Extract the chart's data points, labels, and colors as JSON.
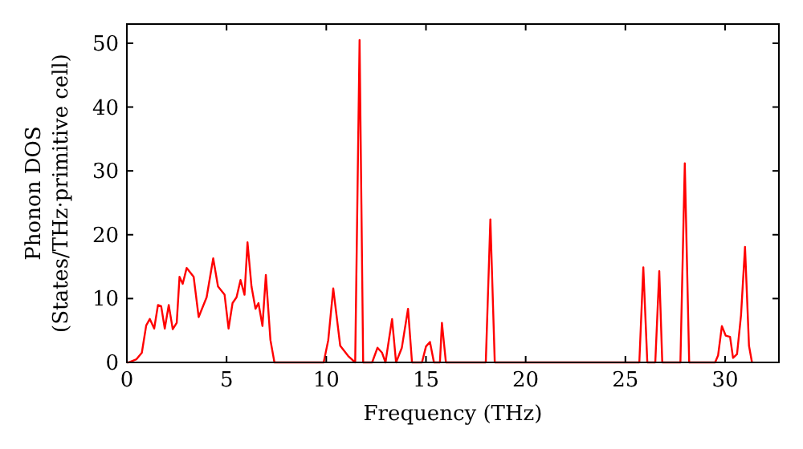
{
  "chart_data": {
    "type": "line",
    "xlabel": "Frequency (THz)",
    "ylabel": "Phonon DOS\n(States/THz·primitive cell)",
    "xlim": [
      0,
      32.7
    ],
    "ylim": [
      0,
      53
    ],
    "xticks": [
      0,
      5,
      10,
      15,
      20,
      25,
      30
    ],
    "yticks": [
      0,
      10,
      20,
      30,
      40,
      50
    ],
    "grid": false,
    "marker": "none",
    "line_style": "solid",
    "series": [
      {
        "color": "#ff0000",
        "x": [
          0,
          0.08,
          0.48,
          0.75,
          0.97,
          1.15,
          1.37,
          1.56,
          1.72,
          1.9,
          2.1,
          2.3,
          2.5,
          2.64,
          2.8,
          3.0,
          3.35,
          3.6,
          4.0,
          4.33,
          4.57,
          4.9,
          5.1,
          5.3,
          5.5,
          5.7,
          5.9,
          6.05,
          6.25,
          6.45,
          6.6,
          6.8,
          6.97,
          7.2,
          7.4,
          9.87,
          10.1,
          10.35,
          10.7,
          11.1,
          11.45,
          11.67,
          11.85,
          12.3,
          12.57,
          12.8,
          12.97,
          13.3,
          13.5,
          13.79,
          14.1,
          14.3,
          14.8,
          15.0,
          15.2,
          15.4,
          15.7,
          15.8,
          16.0,
          18.0,
          18.23,
          18.45,
          25.7,
          25.9,
          26.1,
          26.5,
          26.7,
          26.85,
          27.76,
          27.98,
          28.2,
          29.5,
          29.65,
          29.84,
          30.03,
          30.25,
          30.4,
          30.6,
          30.8,
          31.0,
          31.2,
          31.35
        ],
        "values": [
          0,
          0,
          0.5,
          1.5,
          5.8,
          6.8,
          5.3,
          9.0,
          8.8,
          5.3,
          9.0,
          5.2,
          6.2,
          13.4,
          12.3,
          14.8,
          13.4,
          7.1,
          10.2,
          16.3,
          11.9,
          10.6,
          5.3,
          9.3,
          10.2,
          12.9,
          10.6,
          18.8,
          11.9,
          8.4,
          9.3,
          5.7,
          13.7,
          3.5,
          0,
          0,
          3.5,
          11.6,
          2.6,
          1.0,
          0,
          50.5,
          0,
          0,
          2.3,
          1.5,
          0,
          6.8,
          0,
          2.3,
          8.4,
          0,
          0,
          2.5,
          3.2,
          0,
          0,
          6.2,
          0,
          0,
          22.4,
          0,
          0,
          14.9,
          0,
          0,
          14.3,
          0,
          0,
          31.2,
          0,
          0,
          1.1,
          5.7,
          4.2,
          4.0,
          0.7,
          1.3,
          7.4,
          18.1,
          2.6,
          0
        ]
      }
    ]
  }
}
